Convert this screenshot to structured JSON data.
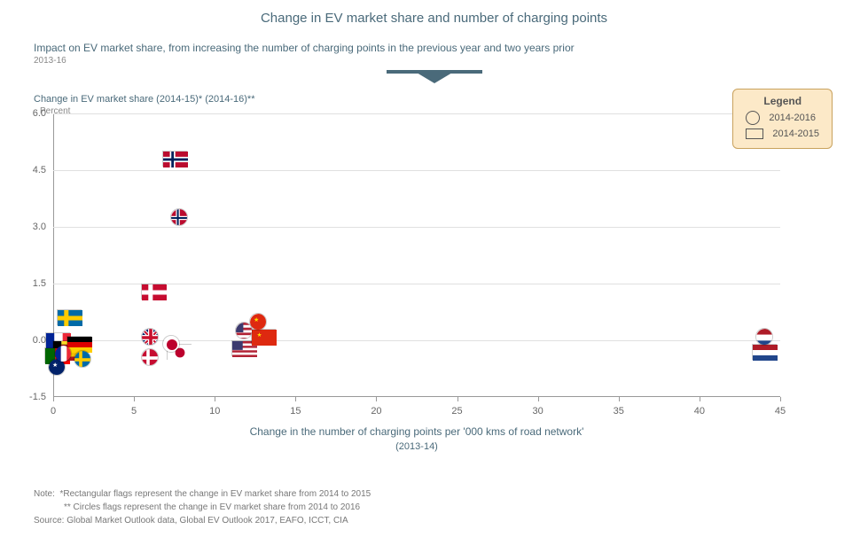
{
  "chart": {
    "title": "Change in EV market share and number of charging points",
    "subtitle": "Impact on EV market share, from increasing the number of charging points in the previous year and two years prior",
    "date_range": "2013-16",
    "y_axis_title": "Change in EV market share (2014-15)* (2014-16)**",
    "y_axis_unit": "Percent",
    "x_axis_title": "Change in the number of charging points per '000 kms of road network'",
    "x_axis_sub": "(2013-14)",
    "background_color": "#ffffff",
    "grid_color": "#e0e0e0",
    "axis_color": "#999999",
    "text_color": "#4a6a7a",
    "xlim": [
      0,
      45
    ],
    "ylim": [
      -1.5,
      6.0
    ],
    "y_ticks": [
      -1.5,
      0.0,
      1.5,
      3.0,
      4.5,
      6.0
    ],
    "x_ticks": [
      0,
      5,
      10,
      15,
      20,
      25,
      30,
      35,
      40,
      45
    ],
    "rect_marker": {
      "width": 28,
      "height": 18
    },
    "circle_marker": {
      "diameter": 20
    },
    "series_rect": {
      "label": "2014-2015",
      "points": [
        {
          "country": "france",
          "x": 0.3,
          "y": 0.0
        },
        {
          "country": "sweden",
          "x": 1.0,
          "y": 0.6
        },
        {
          "country": "belgium",
          "x": 0.7,
          "y": -0.2
        },
        {
          "country": "portugal",
          "x": 0.2,
          "y": -0.4
        },
        {
          "country": "spain",
          "x": 1.2,
          "y": -0.3
        },
        {
          "country": "germany",
          "x": 1.6,
          "y": -0.1
        },
        {
          "country": "norway",
          "x": 7.5,
          "y": 4.8
        },
        {
          "country": "denmark",
          "x": 6.2,
          "y": 1.3
        },
        {
          "country": "japan",
          "x": 7.8,
          "y": -0.3
        },
        {
          "country": "usa",
          "x": 11.8,
          "y": -0.2
        },
        {
          "country": "china",
          "x": 13.0,
          "y": 0.1
        },
        {
          "country": "netherlands",
          "x": 44.0,
          "y": -0.3
        }
      ]
    },
    "series_circle": {
      "label": "2014-2016",
      "points": [
        {
          "country": "australia",
          "x": 0.2,
          "y": -0.7
        },
        {
          "country": "france",
          "x": 0.6,
          "y": -0.35
        },
        {
          "country": "sweden",
          "x": 1.8,
          "y": -0.5
        },
        {
          "country": "uk",
          "x": 6.0,
          "y": 0.1
        },
        {
          "country": "denmark",
          "x": 6.0,
          "y": -0.45
        },
        {
          "country": "japan",
          "x": 7.3,
          "y": -0.1
        },
        {
          "country": "norway",
          "x": 7.8,
          "y": 3.25
        },
        {
          "country": "usa",
          "x": 11.8,
          "y": 0.25
        },
        {
          "country": "china",
          "x": 12.7,
          "y": 0.5
        },
        {
          "country": "netherlands",
          "x": 44.0,
          "y": 0.1
        }
      ]
    }
  },
  "legend": {
    "title": "Legend",
    "circle_label": "2014-2016",
    "rect_label": "2014-2015"
  },
  "notes": {
    "note_label": "Note:",
    "note1": "*Rectangular flags represent the change in EV market share from 2014 to 2015",
    "note2": "** Circles flags represent the change in EV market share from 2014 to 2016",
    "source_label": "Source:",
    "source": "Global Market Outlook data, Global EV Outlook 2017, EAFO, ICCT, CIA"
  },
  "flags": {
    "france": {
      "type": "v3",
      "colors": [
        "#002395",
        "#ffffff",
        "#ed2939"
      ]
    },
    "belgium": {
      "type": "v3",
      "colors": [
        "#000000",
        "#fdda24",
        "#ef3340"
      ]
    },
    "germany": {
      "type": "h3",
      "colors": [
        "#000000",
        "#dd0000",
        "#ffce00"
      ]
    },
    "netherlands": {
      "type": "h3",
      "colors": [
        "#ae1c28",
        "#ffffff",
        "#21468b"
      ]
    },
    "sweden": {
      "type": "cross",
      "bg": "#006aa7",
      "cross": "#fecc00"
    },
    "denmark": {
      "type": "cross",
      "bg": "#c60c30",
      "cross": "#ffffff"
    },
    "norway": {
      "type": "cross2",
      "bg": "#ba0c2f",
      "cross1": "#ffffff",
      "cross2": "#00205b"
    },
    "japan": {
      "type": "disc",
      "bg": "#ffffff",
      "disc": "#bc002d"
    },
    "china": {
      "type": "solid",
      "bg": "#de2910",
      "star": "#ffde00"
    },
    "usa": {
      "type": "stripes",
      "c1": "#b22234",
      "c2": "#ffffff",
      "canton": "#3c3b6e"
    },
    "uk": {
      "type": "uk",
      "bg": "#012169",
      "r": "#c8102e",
      "w": "#ffffff"
    },
    "spain": {
      "type": "h3b",
      "colors": [
        "#aa151b",
        "#f1bf00",
        "#aa151b"
      ]
    },
    "portugal": {
      "type": "v2",
      "colors": [
        "#006600",
        "#ff0000"
      ],
      "split": 0.4
    },
    "australia": {
      "type": "solid",
      "bg": "#012169",
      "star": "#ffffff"
    }
  }
}
